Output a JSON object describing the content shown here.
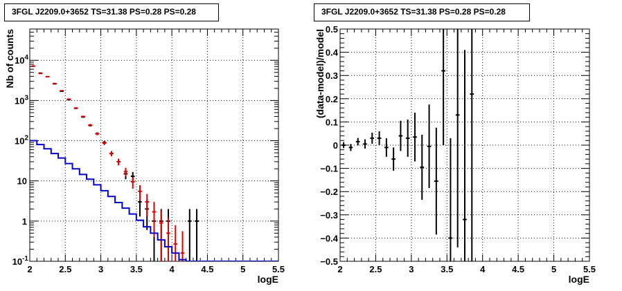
{
  "chart_data": [
    {
      "type": "histogram",
      "title": "3FGL J2209.0+3652 TS=31.38 PS=0.28 PS=0.28",
      "xlabel": "logE",
      "ylabel": "Nb of counts",
      "xlim": [
        2,
        5.5
      ],
      "ylim": [
        0.1,
        60000
      ],
      "yscale": "log",
      "grid": true,
      "x_ticks": [
        "2",
        "2.5",
        "3",
        "3.5",
        "4",
        "4.5",
        "5",
        "5.5"
      ],
      "y_ticks": [
        {
          "value": 0.1,
          "label": "10",
          "exp": "-1"
        },
        {
          "value": 1,
          "label": "1",
          "exp": ""
        },
        {
          "value": 10,
          "label": "10",
          "exp": ""
        },
        {
          "value": 100,
          "label": "10",
          "exp": "2"
        },
        {
          "value": 1000,
          "label": "10",
          "exp": "3"
        },
        {
          "value": 10000,
          "label": "10",
          "exp": "4"
        }
      ],
      "series": [
        {
          "kind": "data",
          "color": "#000000",
          "points": [
            {
              "x": 2.05,
              "y": 7200,
              "err": 90
            },
            {
              "x": 2.15,
              "y": 4800,
              "err": 70
            },
            {
              "x": 2.25,
              "y": 3900,
              "err": 60
            },
            {
              "x": 2.35,
              "y": 2600,
              "err": 50
            },
            {
              "x": 2.45,
              "y": 1700,
              "err": 40
            },
            {
              "x": 2.55,
              "y": 1050,
              "err": 32
            },
            {
              "x": 2.65,
              "y": 640,
              "err": 25
            },
            {
              "x": 2.75,
              "y": 390,
              "err": 20
            },
            {
              "x": 2.85,
              "y": 240,
              "err": 15
            },
            {
              "x": 2.95,
              "y": 150,
              "err": 12
            },
            {
              "x": 3.05,
              "y": 90,
              "err": 9
            },
            {
              "x": 3.15,
              "y": 48,
              "err": 7
            },
            {
              "x": 3.25,
              "y": 30,
              "err": 5.5
            },
            {
              "x": 3.35,
              "y": 15,
              "err": 4
            },
            {
              "x": 3.45,
              "y": 13,
              "err": 3.6
            },
            {
              "x": 3.55,
              "y": 3,
              "err": 1.7
            },
            {
              "x": 3.65,
              "y": 2,
              "err": 1.4
            },
            {
              "x": 3.75,
              "y": 1,
              "err": 1
            },
            {
              "x": 3.85,
              "y": 1,
              "err": 1
            },
            {
              "x": 3.95,
              "y": 1,
              "err": 1
            },
            {
              "x": 4.25,
              "y": 1,
              "err": 1
            },
            {
              "x": 4.35,
              "y": 1,
              "err": 1
            }
          ]
        },
        {
          "kind": "model",
          "color": "#dd0000",
          "points": [
            {
              "x": 2.05,
              "y": 7200,
              "err": 85
            },
            {
              "x": 2.15,
              "y": 4700,
              "err": 69
            },
            {
              "x": 2.25,
              "y": 3900,
              "err": 62
            },
            {
              "x": 2.35,
              "y": 2650,
              "err": 51
            },
            {
              "x": 2.45,
              "y": 1750,
              "err": 42
            },
            {
              "x": 2.55,
              "y": 1080,
              "err": 33
            },
            {
              "x": 2.65,
              "y": 650,
              "err": 25
            },
            {
              "x": 2.75,
              "y": 400,
              "err": 20
            },
            {
              "x": 2.85,
              "y": 245,
              "err": 16
            },
            {
              "x": 2.95,
              "y": 148,
              "err": 12
            },
            {
              "x": 3.05,
              "y": 87,
              "err": 9
            },
            {
              "x": 3.15,
              "y": 48,
              "err": 7
            },
            {
              "x": 3.25,
              "y": 30,
              "err": 5.5
            },
            {
              "x": 3.35,
              "y": 17,
              "err": 4.1
            },
            {
              "x": 3.45,
              "y": 9.5,
              "err": 3.1
            },
            {
              "x": 3.55,
              "y": 5.5,
              "err": 2.3
            },
            {
              "x": 3.65,
              "y": 3,
              "err": 1.7
            },
            {
              "x": 3.75,
              "y": 1.7,
              "err": 1.3
            },
            {
              "x": 3.85,
              "y": 0.9,
              "err": 0.95
            },
            {
              "x": 3.95,
              "y": 0.5,
              "err": 0.7
            },
            {
              "x": 4.05,
              "y": 0.27,
              "err": 0.52
            },
            {
              "x": 4.15,
              "y": 0.16,
              "err": 0.4
            }
          ]
        },
        {
          "kind": "background",
          "color": "#0000cc",
          "edges": [
            2.0,
            2.1,
            2.2,
            2.3,
            2.4,
            2.5,
            2.6,
            2.7,
            2.8,
            2.9,
            3.0,
            3.1,
            3.2,
            3.3,
            3.4,
            3.5,
            3.6,
            3.7,
            3.8,
            3.9,
            4.0,
            4.1,
            4.2,
            4.3,
            4.4,
            4.5,
            4.6,
            4.7,
            4.8,
            4.9,
            5.0,
            5.1,
            5.2,
            5.3,
            5.4,
            5.5
          ],
          "values": [
            100,
            80,
            63,
            48,
            37,
            27,
            20,
            14.5,
            11,
            8,
            5.7,
            4.1,
            2.9,
            2.1,
            1.5,
            1.05,
            0.72,
            0.5,
            0.34,
            0.23,
            0.16,
            0.11,
            0.1,
            0.1,
            0.1,
            0.1,
            0.1,
            0.1,
            0.1,
            0.1,
            0.1,
            0.1,
            0.1,
            0.1,
            0.1
          ]
        }
      ]
    },
    {
      "type": "scatter",
      "title": "3FGL J2209.0+3652 TS=31.38 PS=0.28 PS=0.28",
      "xlabel": "logE",
      "ylabel": "(data-model)/model",
      "xlim": [
        2,
        5.5
      ],
      "ylim": [
        -0.5,
        0.5
      ],
      "grid": true,
      "x_ticks": [
        "2",
        "2.5",
        "3",
        "3.5",
        "4",
        "4.5",
        "5",
        "5.5"
      ],
      "y_ticks": [
        "−0.5",
        "−0.4",
        "−0.3",
        "−0.2",
        "−0.1",
        "0",
        "0.1",
        "0.2",
        "0.3",
        "0.4",
        "0.5"
      ],
      "series": [
        {
          "kind": "residual",
          "color": "#000000",
          "points": [
            {
              "x": 2.05,
              "y": 0.0,
              "err": 0.013
            },
            {
              "x": 2.15,
              "y": -0.01,
              "err": 0.015
            },
            {
              "x": 2.25,
              "y": 0.015,
              "err": 0.016
            },
            {
              "x": 2.35,
              "y": 0.005,
              "err": 0.02
            },
            {
              "x": 2.45,
              "y": 0.03,
              "err": 0.024
            },
            {
              "x": 2.55,
              "y": 0.03,
              "err": 0.03
            },
            {
              "x": 2.65,
              "y": -0.01,
              "err": 0.04
            },
            {
              "x": 2.75,
              "y": -0.06,
              "err": 0.05
            },
            {
              "x": 2.85,
              "y": 0.04,
              "err": 0.065
            },
            {
              "x": 2.95,
              "y": 0.03,
              "err": 0.08
            },
            {
              "x": 3.05,
              "y": 0.035,
              "err": 0.105
            },
            {
              "x": 3.15,
              "y": -0.095,
              "err": 0.14
            },
            {
              "x": 3.25,
              "y": -0.005,
              "err": 0.18
            },
            {
              "x": 3.35,
              "y": -0.155,
              "err": 0.23
            },
            {
              "x": 3.45,
              "y": 0.32,
              "err": 0.32
            },
            {
              "x": 3.55,
              "y": -0.4,
              "err": 0.43
            },
            {
              "x": 3.65,
              "y": 0.13,
              "err": 0.57
            },
            {
              "x": 3.75,
              "y": -0.32,
              "err": 0.73
            },
            {
              "x": 3.85,
              "y": 0.22,
              "err": 1.05
            }
          ]
        }
      ]
    }
  ]
}
